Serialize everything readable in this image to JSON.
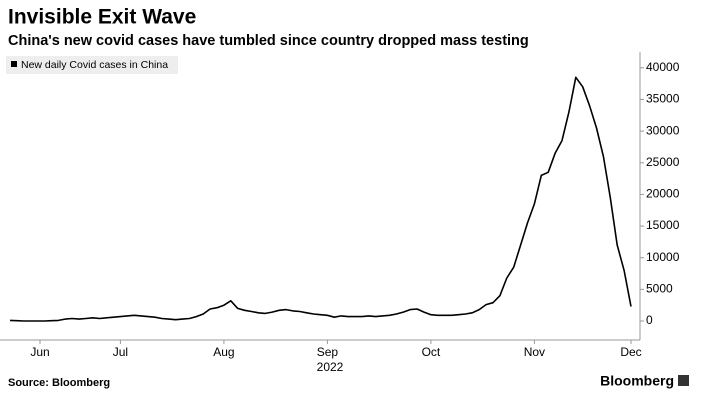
{
  "chart_data": {
    "type": "line",
    "title": "Invisible Exit Wave",
    "subtitle": "China's new covid cases have tumbled since country dropped mass testing",
    "x_axis_year": "2022",
    "source": "Source: Bloomberg",
    "brand": "Bloomberg",
    "categories": [
      null,
      null,
      null,
      null,
      "Jun",
      null,
      null,
      null,
      null,
      null,
      null,
      null,
      null,
      null,
      null,
      null,
      "Jul",
      null,
      null,
      null,
      null,
      null,
      null,
      null,
      null,
      null,
      null,
      null,
      null,
      null,
      null,
      "Aug",
      null,
      null,
      null,
      null,
      null,
      null,
      null,
      null,
      null,
      null,
      null,
      null,
      null,
      null,
      "Sep",
      null,
      null,
      null,
      null,
      null,
      null,
      null,
      null,
      null,
      null,
      null,
      null,
      null,
      null,
      "Oct",
      null,
      null,
      null,
      null,
      null,
      null,
      null,
      null,
      null,
      null,
      null,
      null,
      null,
      null,
      "Nov",
      null,
      null,
      null,
      null,
      null,
      null,
      null,
      null,
      null,
      null,
      null,
      null,
      null,
      "Dec"
    ],
    "series": [
      {
        "name": "New daily Covid cases in China",
        "color": "#000000",
        "values": [
          100,
          50,
          0,
          0,
          0,
          0,
          50,
          100,
          300,
          400,
          300,
          400,
          500,
          400,
          500,
          600,
          700,
          800,
          900,
          800,
          700,
          600,
          400,
          300,
          200,
          300,
          400,
          700,
          1100,
          1900,
          2100,
          2500,
          3200,
          2000,
          1700,
          1500,
          1300,
          1200,
          1400,
          1700,
          1800,
          1600,
          1500,
          1300,
          1100,
          1000,
          900,
          600,
          800,
          700,
          700,
          700,
          800,
          700,
          800,
          900,
          1100,
          1400,
          1800,
          1900,
          1400,
          1000,
          900,
          900,
          900,
          1000,
          1100,
          1300,
          1800,
          2600,
          2900,
          4000,
          6800,
          8500,
          12000,
          15500,
          18500,
          23000,
          23500,
          26500,
          28500,
          33000,
          38500,
          37000,
          34000,
          30500,
          26000,
          19500,
          12000,
          8000,
          2300
        ]
      }
    ],
    "ylim": [
      -3000,
      42500
    ],
    "yticks": [
      0,
      5000,
      10000,
      15000,
      20000,
      25000,
      30000,
      35000,
      40000
    ],
    "y_axis_side": "right"
  }
}
